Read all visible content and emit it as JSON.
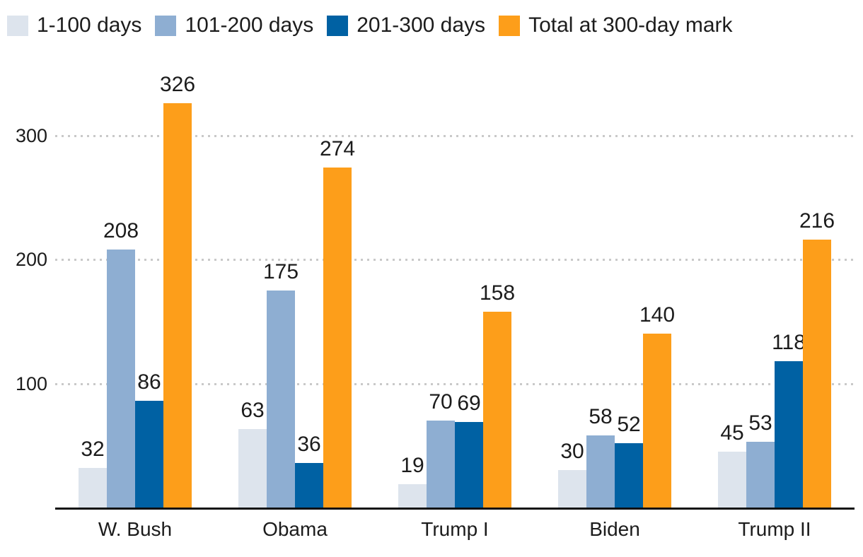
{
  "chart_data": {
    "type": "bar",
    "title": "",
    "xlabel": "",
    "ylabel": "",
    "categories": [
      "W. Bush",
      "Obama",
      "Trump I",
      "Biden",
      "Trump II"
    ],
    "series": [
      {
        "name": "1-100 days",
        "color": "#dde4ed",
        "values": [
          32,
          63,
          19,
          30,
          45
        ]
      },
      {
        "name": "101-200 days",
        "color": "#8eaed2",
        "values": [
          208,
          175,
          70,
          58,
          53
        ]
      },
      {
        "name": "201-300 days",
        "color": "#0061a3",
        "values": [
          86,
          36,
          69,
          52,
          118
        ]
      },
      {
        "name": "Total at 300-day mark",
        "color": "#fd9e1a",
        "values": [
          326,
          274,
          158,
          140,
          216
        ]
      }
    ],
    "ylim": [
      0,
      360
    ],
    "yticks": [
      100,
      200,
      300
    ],
    "grid": "horizontal-dotted",
    "gridline_color": "#c9c9c9",
    "axis_line_color": "#111111",
    "text_color": "#1c1c1c",
    "legend_position": "top-left",
    "value_labels": true
  }
}
